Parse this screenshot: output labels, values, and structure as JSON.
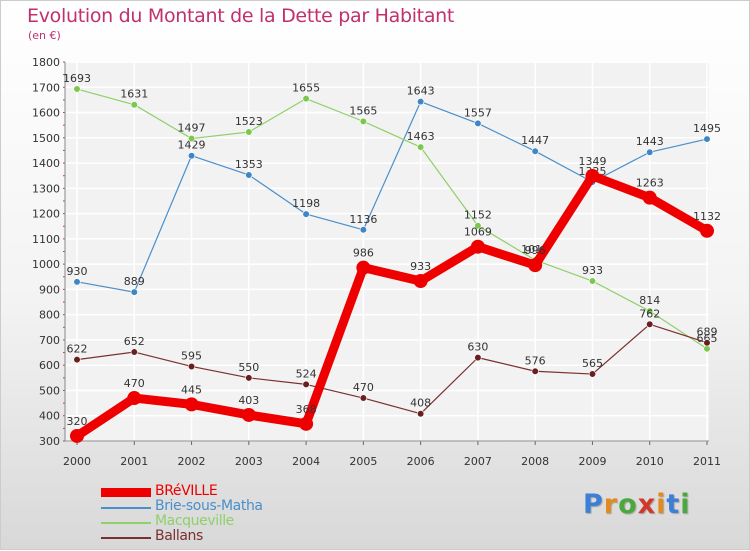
{
  "title": "Evolution du Montant de la Dette par Habitant",
  "subtitle": "(en €)",
  "brand": {
    "letters": [
      {
        "char": "P",
        "color": "#3d7fd6"
      },
      {
        "char": "r",
        "color": "#e38a1d"
      },
      {
        "char": "o",
        "color": "#4aa83d"
      },
      {
        "char": "x",
        "color": "#d2372b"
      },
      {
        "char": "i",
        "color": "#e38a1d"
      },
      {
        "char": "t",
        "color": "#3d7fd6"
      },
      {
        "char": "i",
        "color": "#4aa83d"
      }
    ]
  },
  "chart_data": {
    "type": "line",
    "title": "Evolution du Montant de la Dette par Habitant",
    "ylabel": "(en €)",
    "x": [
      "2000",
      "2001",
      "2002",
      "2003",
      "2004",
      "2005",
      "2006",
      "2007",
      "2008",
      "2009",
      "2010",
      "2011"
    ],
    "ylim": [
      300,
      1800
    ],
    "yticks": [
      300,
      400,
      500,
      600,
      700,
      800,
      900,
      1000,
      1100,
      1200,
      1300,
      1400,
      1500,
      1600,
      1700,
      1800
    ],
    "grid": true,
    "legend": "bottom-left",
    "series": [
      {
        "name": "Brie-sous-Matha",
        "color": "#4a8fc9",
        "point_color": "#3f86c6",
        "values": [
          930,
          889,
          1429,
          1353,
          1198,
          1136,
          1643,
          1557,
          1447,
          1325,
          1443,
          1495
        ]
      },
      {
        "name": "Macqueville",
        "color": "#8fd06a",
        "point_color": "#7cc84e",
        "values": [
          1693,
          1631,
          1497,
          1523,
          1655,
          1565,
          1463,
          1152,
          1016,
          933,
          814,
          665
        ]
      },
      {
        "name": "Ballans",
        "color": "#7a3030",
        "point_color": "#6a1f1f",
        "values": [
          622,
          652,
          595,
          550,
          524,
          470,
          408,
          630,
          576,
          565,
          762,
          689
        ]
      },
      {
        "name": "BRéVILLE",
        "color": "#ee0000",
        "point_color": "#ee0000",
        "values": [
          320,
          470,
          445,
          403,
          368,
          986,
          933,
          1069,
          996,
          1349,
          1263,
          1132
        ]
      }
    ],
    "legend_order": [
      "BRéVILLE",
      "Brie-sous-Matha",
      "Macqueville",
      "Ballans"
    ]
  }
}
